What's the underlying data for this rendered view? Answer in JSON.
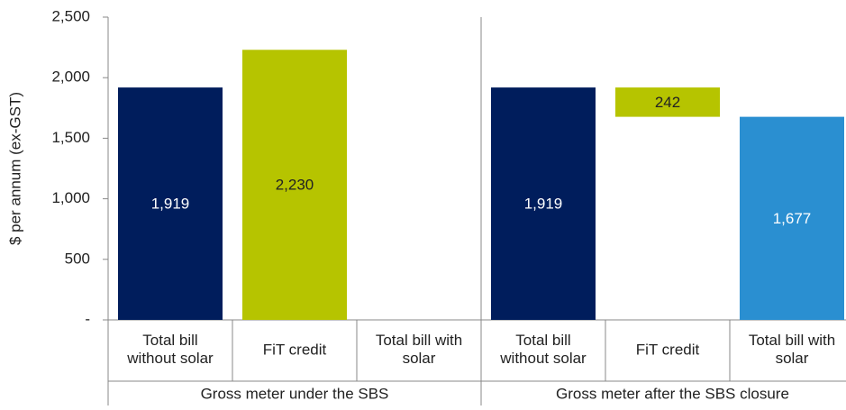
{
  "chart_data": {
    "type": "waterfall",
    "y_label": "$ per annum (ex-GST)",
    "ylim": [
      0,
      2500
    ],
    "yticks": [
      {
        "value": 0,
        "label": "-"
      },
      500,
      {
        "value": 1000,
        "label": "1,000"
      },
      {
        "value": 1500,
        "label": "1,500"
      },
      {
        "value": 2000,
        "label": "2,000"
      },
      {
        "value": 2500,
        "label": "2,500"
      }
    ],
    "grid": false,
    "groups": [
      {
        "name": "Gross meter under the SBS",
        "categories": [
          "Total bill\nwithout solar",
          "FiT credit",
          "Total bill with\nsolar"
        ],
        "values": [
          1919,
          2230,
          null
        ],
        "value_labels": [
          "1,919",
          "2,230",
          null
        ],
        "measures": [
          "absolute",
          "absolute",
          "absolute"
        ],
        "colors": [
          "#001d5c",
          "#b6c400",
          null
        ]
      },
      {
        "name": "Gross meter after the SBS closure",
        "categories": [
          "Total bill\nwithout solar",
          "FiT credit",
          "Total bill with\nsolar"
        ],
        "values": [
          1919,
          242,
          1677
        ],
        "value_labels": [
          "1,919",
          "242",
          "1,677"
        ],
        "measures": [
          "absolute",
          "decrease",
          "absolute"
        ],
        "colors": [
          "#001d5c",
          "#b6c400",
          "#2a8fd1"
        ]
      }
    ]
  }
}
